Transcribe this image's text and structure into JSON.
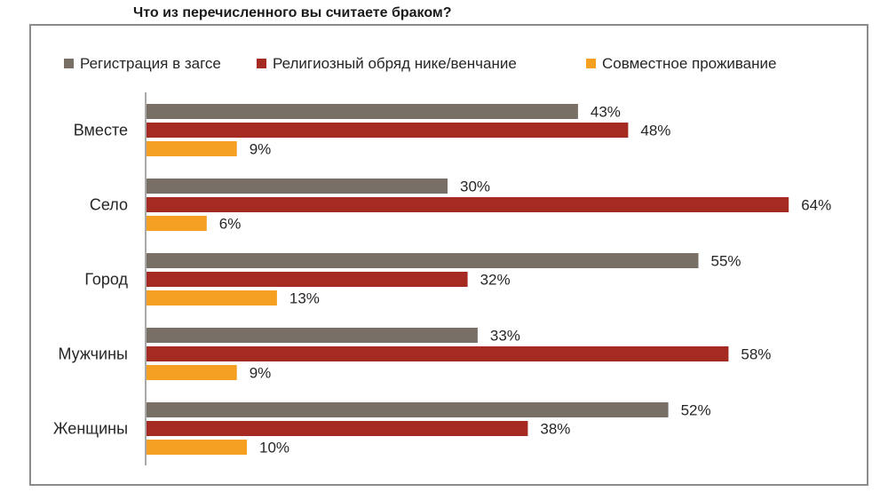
{
  "title": "Что из перечисленного вы считаете браком?",
  "chart_data": {
    "type": "bar",
    "orientation": "horizontal",
    "title": "Что из перечисленного вы считаете браком?",
    "categories": [
      "Вместе",
      "Село",
      "Город",
      "Мужчины",
      "Женщины"
    ],
    "series": [
      {
        "name": "Регистрация в загсе",
        "color": "#786f67",
        "values": [
          43,
          30,
          55,
          33,
          52
        ],
        "labels": [
          "43%",
          "30%",
          "55%",
          "33%",
          "52%"
        ]
      },
      {
        "name": "Религиозный обряд нике/венчание",
        "color": "#a52a22",
        "values": [
          48,
          64,
          32,
          58,
          38
        ],
        "labels": [
          "48%",
          "64%",
          "32%",
          "58%",
          "38%"
        ]
      },
      {
        "name": "Совместное проживание",
        "color": "#f5a021",
        "values": [
          9,
          6,
          13,
          9,
          10
        ],
        "labels": [
          "9%",
          "6%",
          "13%",
          "9%",
          "10%"
        ]
      }
    ],
    "unit": "%",
    "xlim": [
      0,
      70
    ],
    "grid": false,
    "legend_position": "top"
  }
}
